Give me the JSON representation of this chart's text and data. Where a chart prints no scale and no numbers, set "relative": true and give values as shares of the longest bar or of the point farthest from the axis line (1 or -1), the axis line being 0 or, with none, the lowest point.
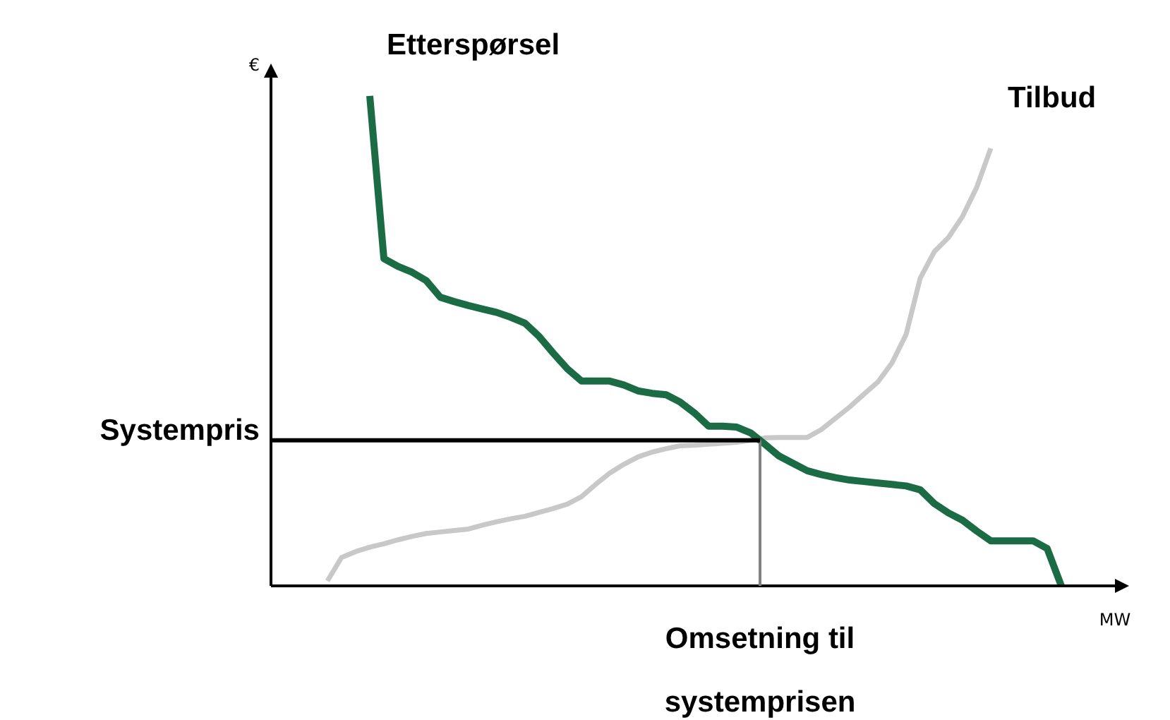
{
  "chart_data": {
    "type": "line",
    "relative": true,
    "xlabel": "MW",
    "ylabel": "€",
    "legend": false,
    "categories": [
      null,
      null,
      null,
      null,
      null,
      null,
      null,
      null,
      null,
      null,
      null,
      null,
      null,
      null,
      null,
      null,
      null,
      null,
      null,
      null,
      null,
      null,
      null,
      null,
      null,
      null,
      null,
      null,
      null,
      null,
      null,
      null,
      null,
      null,
      null,
      null,
      null,
      null,
      null,
      null,
      null,
      null,
      null,
      null,
      null,
      null,
      null,
      null,
      null,
      null,
      null,
      null,
      null,
      null,
      null,
      null,
      null,
      null,
      null,
      null,
      null
    ],
    "series": [
      {
        "name": "Etterspørsel",
        "color": "#1b6b45",
        "values": [
          null,
          null,
          null,
          null,
          null,
          null,
          null,
          1.0,
          0.668,
          0.652,
          0.64,
          0.623,
          0.589,
          0.58,
          0.572,
          0.565,
          0.558,
          0.548,
          0.536,
          0.509,
          0.475,
          0.443,
          0.418,
          0.418,
          0.418,
          0.41,
          0.398,
          0.393,
          0.39,
          0.375,
          0.353,
          0.326,
          0.326,
          0.324,
          0.312,
          0.289,
          0.265,
          0.25,
          0.235,
          0.227,
          0.221,
          0.216,
          0.213,
          0.21,
          0.207,
          0.204,
          0.196,
          0.168,
          0.149,
          0.134,
          0.112,
          0.092,
          0.092,
          0.092,
          0.092,
          0.076,
          0,
          null,
          null,
          null,
          null
        ]
      },
      {
        "name": "Tilbud",
        "color": "#c8c8c8",
        "values": [
          null,
          null,
          null,
          null,
          0.01,
          0.058,
          0.07,
          0.079,
          0.086,
          0.094,
          0.101,
          0.107,
          0.11,
          0.113,
          0.116,
          0.124,
          0.131,
          0.137,
          0.142,
          0.15,
          0.158,
          0.167,
          0.182,
          0.207,
          0.23,
          0.248,
          0.263,
          0.273,
          0.28,
          0.286,
          0.287,
          0.289,
          0.291,
          0.293,
          0.297,
          0.302,
          0.303,
          0.303,
          0.303,
          0.319,
          0.342,
          0.365,
          0.391,
          0.416,
          0.455,
          0.513,
          0.628,
          0.682,
          0.711,
          0.754,
          0.813,
          0.893,
          null,
          null,
          null,
          null,
          null,
          null,
          null,
          null,
          null
        ]
      }
    ],
    "ref_lines": [
      {
        "axis": "y",
        "value": 0.297,
        "label": "Systempris",
        "color": "#000000"
      }
    ],
    "annotations": [
      "Omsetning til systemprisen"
    ]
  }
}
